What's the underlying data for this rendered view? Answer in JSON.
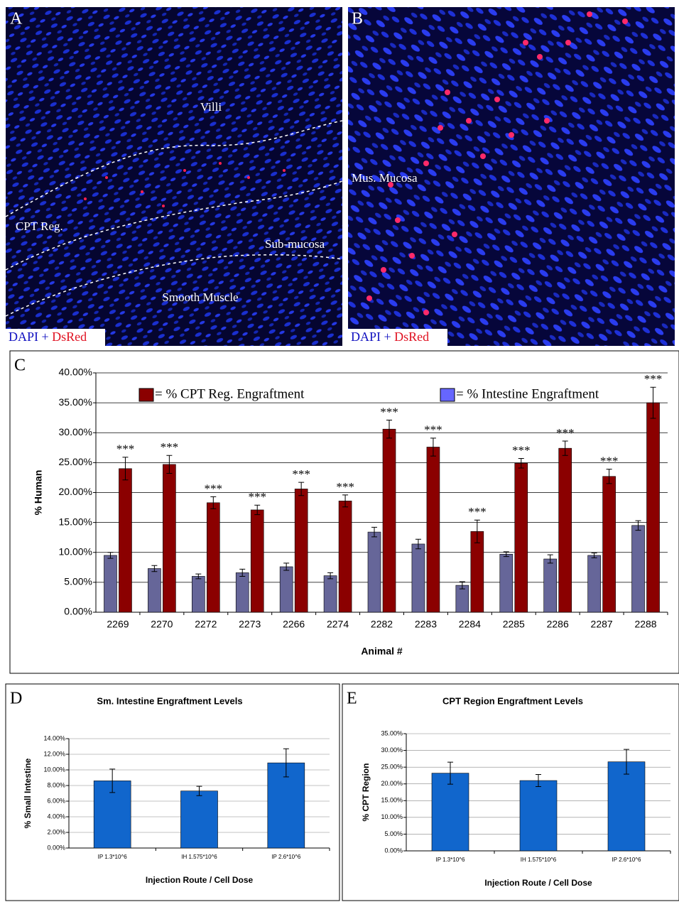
{
  "images": [
    {
      "label": "A",
      "annotations": [
        "Villi",
        "CPT Reg.",
        "Sub-mucosa",
        "Smooth Muscle"
      ],
      "caption": [
        "DAPI",
        "+",
        "DsRed"
      ]
    },
    {
      "label": "B",
      "annotations": [
        "Mus. Mucosa"
      ],
      "caption": [
        "DAPI",
        "+",
        "DsRed"
      ]
    }
  ],
  "chart_data": [
    {
      "type": "bar",
      "panel_label": "C",
      "xlabel": "Animal #",
      "ylabel": "% Human",
      "categories": [
        "2269",
        "2270",
        "2272",
        "2273",
        "2266",
        "2274",
        "2282",
        "2283",
        "2284",
        "2285",
        "2286",
        "2287",
        "2288"
      ],
      "series": [
        {
          "name": "= % Intestine Engraftment",
          "color": "#666699",
          "values": [
            9.5,
            7.3,
            6.0,
            6.6,
            7.6,
            6.1,
            13.4,
            11.4,
            4.5,
            9.7,
            8.9,
            9.5,
            14.5
          ],
          "errors": [
            0.5,
            0.5,
            0.4,
            0.6,
            0.6,
            0.5,
            0.8,
            0.8,
            0.6,
            0.4,
            0.7,
            0.4,
            0.8
          ]
        },
        {
          "name": "= % CPT Reg. Engraftment",
          "color": "#8b0000",
          "values": [
            24.0,
            24.7,
            18.3,
            17.1,
            20.6,
            18.6,
            30.6,
            27.6,
            13.5,
            24.9,
            27.4,
            22.7,
            35.0
          ],
          "errors": [
            1.9,
            1.5,
            1.0,
            0.8,
            1.1,
            1.0,
            1.5,
            1.5,
            1.9,
            0.8,
            1.2,
            1.2,
            2.6
          ],
          "markers": [
            "***",
            "***",
            "***",
            "***",
            "***",
            "***",
            "***",
            "***",
            "***",
            "***",
            "***",
            "***",
            "***"
          ]
        }
      ],
      "ylim": [
        0,
        40
      ],
      "yticks": [
        {
          "value": 0,
          "label": "0.00%"
        },
        {
          "value": 5,
          "label": "5.00%"
        },
        {
          "value": 10,
          "label": "10.00%"
        },
        {
          "value": 15,
          "label": "15.00%"
        },
        {
          "value": 20,
          "label": "20.00%"
        },
        {
          "value": 25,
          "label": "25.00%"
        },
        {
          "value": 30,
          "label": "30.00%"
        },
        {
          "value": 35,
          "label": "35.00%"
        },
        {
          "value": 40,
          "label": "40.00%"
        }
      ],
      "grid": true,
      "legend": "top"
    },
    {
      "type": "bar",
      "panel_label": "D",
      "title": "Sm. Intestine Engraftment Levels",
      "xlabel": "Injection Route / Cell Dose",
      "ylabel": "% Small Intestine",
      "categories": [
        "IP 1.3*10^6",
        "IH 1.575*10^6",
        "IP 2.6*10^6"
      ],
      "series": [
        {
          "color": "#1166cc",
          "values": [
            8.6,
            7.3,
            10.9
          ],
          "errors": [
            1.5,
            0.6,
            1.8
          ]
        }
      ],
      "ylim": [
        0,
        14
      ],
      "yticks": [
        {
          "value": 0,
          "label": "0.00%"
        },
        {
          "value": 2,
          "label": "2.00%"
        },
        {
          "value": 4,
          "label": "4.00%"
        },
        {
          "value": 6,
          "label": "6.00%"
        },
        {
          "value": 8,
          "label": "8.00%"
        },
        {
          "value": 10,
          "label": "10.00%"
        },
        {
          "value": 12,
          "label": "12.00%"
        },
        {
          "value": 14,
          "label": "14.00%"
        }
      ],
      "grid": true
    },
    {
      "type": "bar",
      "panel_label": "E",
      "title": "CPT Region Engraftment Levels",
      "xlabel": "Injection Route / Cell Dose",
      "ylabel": "% CPT Region",
      "categories": [
        "IP 1.3*10^6",
        "IH 1.575*10^6",
        "IP 2.6*10^6"
      ],
      "series": [
        {
          "color": "#1166cc",
          "values": [
            23.2,
            21.0,
            26.6
          ],
          "errors": [
            3.3,
            1.8,
            3.7
          ]
        }
      ],
      "ylim": [
        0,
        35
      ],
      "yticks": [
        {
          "value": 0,
          "label": "0.00%"
        },
        {
          "value": 5,
          "label": "5.00%"
        },
        {
          "value": 10,
          "label": "10.00%"
        },
        {
          "value": 15,
          "label": "15.00%"
        },
        {
          "value": 20,
          "label": "20.00%"
        },
        {
          "value": 25,
          "label": "25.00%"
        },
        {
          "value": 30,
          "label": "30.00%"
        },
        {
          "value": 35,
          "label": "35.00%"
        }
      ],
      "grid": true
    }
  ]
}
